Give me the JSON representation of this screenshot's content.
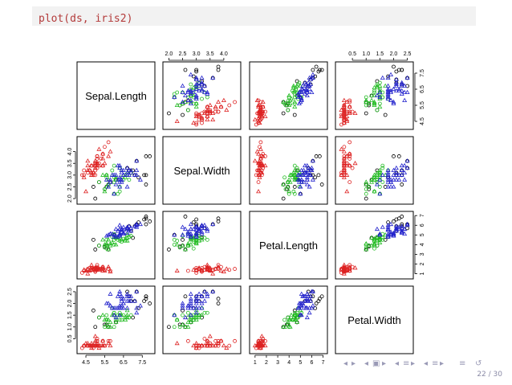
{
  "code": "plot(ds, iris2)",
  "page_number": "22 / 30",
  "nav_icons": [
    "arrow-left-icon",
    "arrow-right-icon",
    "frame-left-icon",
    "frame-right-icon",
    "subsection-left-icon",
    "subsection-right-icon",
    "section-left-icon",
    "section-right-icon",
    "align-icon",
    "search-refresh-icon"
  ],
  "colors": {
    "group1": "#000000",
    "group2": "#dd2222",
    "group3": "#22bb22",
    "group4": "#2222cc"
  },
  "chart_data": {
    "type": "scatter",
    "variables": [
      "Sepal.Length",
      "Sepal.Width",
      "Petal.Length",
      "Petal.Width"
    ],
    "axes": {
      "Sepal.Length": {
        "range": [
          4.2,
          8.0
        ],
        "ticks": [
          "4.5",
          "5.5",
          "6.5",
          "7.5"
        ],
        "tick_values": [
          4.5,
          5.5,
          6.5,
          7.5
        ]
      },
      "Sepal.Width": {
        "range": [
          1.9,
          4.5
        ],
        "ticks": [
          "2.0",
          "2.5",
          "3.0",
          "3.5",
          "4.0"
        ],
        "tick_values": [
          2.0,
          2.5,
          3.0,
          3.5,
          4.0
        ]
      },
      "Petal.Length": {
        "range": [
          0.8,
          7.1
        ],
        "ticks": [
          "1",
          "2",
          "3",
          "4",
          "5",
          "6",
          "7"
        ],
        "tick_values": [
          1,
          2,
          3,
          4,
          5,
          6,
          7
        ]
      },
      "Petal.Width": {
        "range": [
          0.0,
          2.6
        ],
        "ticks": [
          "0.5",
          "1.0",
          "1.5",
          "2.0",
          "2.5"
        ],
        "tick_values": [
          0.5,
          1.0,
          1.5,
          2.0,
          2.5
        ]
      }
    },
    "groups": [
      {
        "color": "#000000",
        "shape": "circle",
        "points": [
          [
            7.7,
            3.8,
            6.7,
            2.2
          ],
          [
            7.9,
            3.8,
            6.4,
            2.0
          ],
          [
            7.2,
            3.6,
            6.1,
            2.5
          ],
          [
            7.7,
            3.0,
            6.1,
            2.3
          ],
          [
            7.6,
            3.0,
            6.6,
            2.1
          ],
          [
            7.3,
            2.9,
            6.3,
            1.8
          ],
          [
            7.7,
            2.6,
            6.9,
            2.3
          ],
          [
            6.9,
            3.1,
            5.4,
            2.1
          ],
          [
            6.7,
            3.3,
            5.7,
            2.5
          ],
          [
            7.1,
            3.0,
            5.9,
            2.1
          ],
          [
            6.8,
            3.2,
            5.9,
            2.3
          ],
          [
            5.6,
            2.5,
            3.9,
            1.1
          ],
          [
            5.5,
            2.4,
            3.8,
            1.1
          ],
          [
            5.0,
            2.0,
            3.5,
            1.0
          ],
          [
            4.9,
            2.5,
            4.5,
            1.7
          ],
          [
            6.0,
            2.2,
            5.0,
            1.5
          ],
          [
            6.1,
            2.8,
            4.7,
            1.2
          ],
          [
            5.2,
            2.7,
            3.9,
            1.4
          ],
          [
            5.7,
            2.6,
            3.5,
            1.0
          ],
          [
            7.0,
            3.2,
            4.7,
            1.4
          ]
        ]
      },
      {
        "color": "#dd2222",
        "shape": "mixed",
        "points": [
          [
            5.1,
            3.5,
            1.4,
            0.2
          ],
          [
            4.9,
            3.0,
            1.4,
            0.2
          ],
          [
            4.7,
            3.2,
            1.3,
            0.2
          ],
          [
            4.6,
            3.1,
            1.5,
            0.2
          ],
          [
            5.0,
            3.6,
            1.4,
            0.2
          ],
          [
            5.4,
            3.9,
            1.7,
            0.4
          ],
          [
            4.6,
            3.4,
            1.4,
            0.3
          ],
          [
            5.0,
            3.4,
            1.5,
            0.2
          ],
          [
            4.4,
            2.9,
            1.4,
            0.2
          ],
          [
            4.9,
            3.1,
            1.5,
            0.1
          ],
          [
            5.4,
            3.7,
            1.5,
            0.2
          ],
          [
            4.8,
            3.4,
            1.6,
            0.2
          ],
          [
            4.8,
            3.0,
            1.4,
            0.1
          ],
          [
            4.3,
            3.0,
            1.1,
            0.1
          ],
          [
            5.8,
            4.0,
            1.2,
            0.2
          ],
          [
            5.7,
            4.4,
            1.5,
            0.4
          ],
          [
            5.4,
            3.9,
            1.3,
            0.4
          ],
          [
            5.1,
            3.5,
            1.4,
            0.3
          ],
          [
            5.7,
            3.8,
            1.7,
            0.3
          ],
          [
            5.1,
            3.8,
            1.5,
            0.3
          ],
          [
            5.4,
            3.4,
            1.7,
            0.2
          ],
          [
            5.1,
            3.7,
            1.5,
            0.4
          ],
          [
            4.6,
            3.6,
            1.0,
            0.2
          ],
          [
            5.1,
            3.3,
            1.7,
            0.5
          ],
          [
            4.8,
            3.4,
            1.9,
            0.2
          ],
          [
            5.0,
            3.0,
            1.6,
            0.2
          ],
          [
            5.0,
            3.4,
            1.6,
            0.4
          ],
          [
            5.2,
            3.5,
            1.5,
            0.2
          ],
          [
            5.2,
            3.4,
            1.4,
            0.2
          ],
          [
            4.7,
            3.2,
            1.6,
            0.2
          ],
          [
            4.8,
            3.1,
            1.6,
            0.2
          ],
          [
            5.4,
            3.4,
            1.5,
            0.4
          ],
          [
            5.2,
            4.1,
            1.5,
            0.1
          ],
          [
            5.5,
            4.2,
            1.4,
            0.2
          ],
          [
            4.9,
            3.1,
            1.5,
            0.2
          ],
          [
            5.0,
            3.2,
            1.2,
            0.2
          ],
          [
            5.5,
            3.5,
            1.3,
            0.2
          ],
          [
            4.4,
            3.0,
            1.3,
            0.2
          ],
          [
            5.1,
            3.4,
            1.5,
            0.2
          ],
          [
            5.0,
            3.5,
            1.3,
            0.3
          ],
          [
            4.5,
            2.3,
            1.3,
            0.3
          ],
          [
            4.4,
            3.2,
            1.3,
            0.2
          ],
          [
            5.0,
            3.5,
            1.6,
            0.6
          ],
          [
            5.1,
            3.8,
            1.9,
            0.4
          ],
          [
            4.8,
            3.0,
            1.4,
            0.3
          ],
          [
            5.1,
            3.8,
            1.6,
            0.2
          ],
          [
            4.6,
            3.2,
            1.4,
            0.2
          ],
          [
            5.3,
            3.7,
            1.5,
            0.2
          ],
          [
            5.0,
            3.3,
            1.4,
            0.2
          ],
          [
            5.8,
            2.7,
            1.3,
            0.4
          ]
        ]
      },
      {
        "color": "#22bb22",
        "shape": "mixed",
        "points": [
          [
            6.4,
            3.2,
            4.5,
            1.5
          ],
          [
            6.9,
            3.1,
            4.9,
            1.5
          ],
          [
            5.5,
            2.3,
            4.0,
            1.3
          ],
          [
            6.5,
            2.8,
            4.6,
            1.5
          ],
          [
            5.7,
            2.8,
            4.5,
            1.3
          ],
          [
            6.3,
            3.3,
            4.7,
            1.6
          ],
          [
            6.6,
            2.9,
            4.6,
            1.3
          ],
          [
            5.2,
            2.7,
            3.9,
            1.4
          ],
          [
            5.9,
            3.0,
            4.2,
            1.5
          ],
          [
            6.0,
            2.2,
            4.0,
            1.0
          ],
          [
            6.1,
            2.9,
            4.7,
            1.4
          ],
          [
            5.6,
            2.9,
            3.6,
            1.3
          ],
          [
            6.7,
            3.1,
            4.4,
            1.4
          ],
          [
            5.6,
            3.0,
            4.5,
            1.5
          ],
          [
            5.8,
            2.7,
            4.1,
            1.0
          ],
          [
            6.2,
            2.2,
            4.5,
            1.5
          ],
          [
            5.6,
            2.5,
            3.9,
            1.1
          ],
          [
            5.9,
            3.2,
            4.8,
            1.8
          ],
          [
            6.1,
            2.8,
            4.0,
            1.3
          ],
          [
            6.3,
            2.5,
            4.9,
            1.5
          ],
          [
            6.1,
            2.8,
            4.7,
            1.2
          ],
          [
            6.4,
            2.9,
            4.3,
            1.3
          ],
          [
            6.6,
            3.0,
            4.4,
            1.4
          ],
          [
            6.8,
            2.8,
            4.8,
            1.4
          ],
          [
            6.7,
            3.0,
            5.0,
            1.7
          ],
          [
            6.0,
            2.9,
            4.5,
            1.5
          ],
          [
            5.7,
            2.6,
            3.5,
            1.0
          ],
          [
            5.5,
            2.4,
            3.7,
            1.0
          ],
          [
            5.8,
            2.7,
            3.9,
            1.2
          ],
          [
            6.0,
            2.7,
            5.1,
            1.6
          ],
          [
            5.4,
            3.0,
            4.5,
            1.5
          ],
          [
            6.0,
            3.4,
            4.5,
            1.6
          ],
          [
            6.7,
            3.1,
            4.7,
            1.5
          ],
          [
            6.3,
            2.3,
            4.4,
            1.3
          ],
          [
            5.6,
            3.0,
            4.1,
            1.3
          ]
        ]
      },
      {
        "color": "#2222cc",
        "shape": "triangle",
        "points": [
          [
            6.3,
            3.3,
            6.0,
            2.5
          ],
          [
            5.8,
            2.7,
            5.1,
            1.9
          ],
          [
            7.1,
            3.0,
            5.9,
            2.1
          ],
          [
            6.3,
            2.9,
            5.6,
            1.8
          ],
          [
            6.5,
            3.0,
            5.8,
            2.2
          ],
          [
            6.4,
            2.7,
            5.3,
            1.9
          ],
          [
            6.8,
            3.0,
            5.5,
            2.1
          ],
          [
            5.7,
            2.5,
            5.0,
            2.0
          ],
          [
            5.8,
            2.8,
            5.1,
            2.4
          ],
          [
            6.4,
            3.2,
            5.3,
            2.3
          ],
          [
            6.5,
            3.0,
            5.5,
            1.8
          ],
          [
            6.0,
            2.2,
            5.0,
            1.5
          ],
          [
            6.9,
            3.2,
            5.7,
            2.3
          ],
          [
            5.6,
            2.8,
            4.9,
            2.0
          ],
          [
            6.3,
            2.7,
            4.9,
            1.8
          ],
          [
            6.7,
            3.3,
            5.7,
            2.1
          ],
          [
            7.2,
            3.2,
            6.0,
            1.8
          ],
          [
            6.2,
            2.8,
            4.8,
            1.8
          ],
          [
            6.1,
            3.0,
            4.9,
            1.8
          ],
          [
            6.4,
            2.8,
            5.6,
            2.1
          ],
          [
            7.2,
            3.0,
            5.8,
            1.6
          ],
          [
            7.4,
            2.8,
            6.1,
            1.9
          ],
          [
            6.4,
            2.8,
            5.6,
            2.2
          ],
          [
            6.3,
            2.8,
            5.1,
            1.5
          ],
          [
            6.1,
            2.6,
            5.6,
            1.4
          ],
          [
            6.3,
            3.4,
            5.6,
            2.4
          ],
          [
            6.4,
            3.1,
            5.5,
            1.8
          ],
          [
            6.0,
            3.0,
            4.8,
            1.8
          ],
          [
            6.9,
            3.1,
            5.4,
            2.1
          ],
          [
            6.7,
            3.1,
            5.6,
            2.4
          ],
          [
            5.8,
            2.7,
            5.1,
            1.9
          ],
          [
            6.8,
            3.2,
            5.9,
            2.3
          ],
          [
            6.7,
            3.0,
            5.2,
            2.3
          ],
          [
            6.3,
            2.5,
            5.0,
            1.9
          ],
          [
            6.5,
            3.0,
            5.2,
            2.0
          ],
          [
            6.2,
            3.4,
            5.4,
            2.3
          ],
          [
            5.9,
            3.0,
            5.1,
            1.8
          ],
          [
            6.7,
            2.5,
            5.8,
            1.8
          ],
          [
            7.2,
            3.6,
            6.1,
            2.5
          ],
          [
            6.5,
            3.2,
            5.1,
            2.0
          ]
        ]
      }
    ]
  }
}
